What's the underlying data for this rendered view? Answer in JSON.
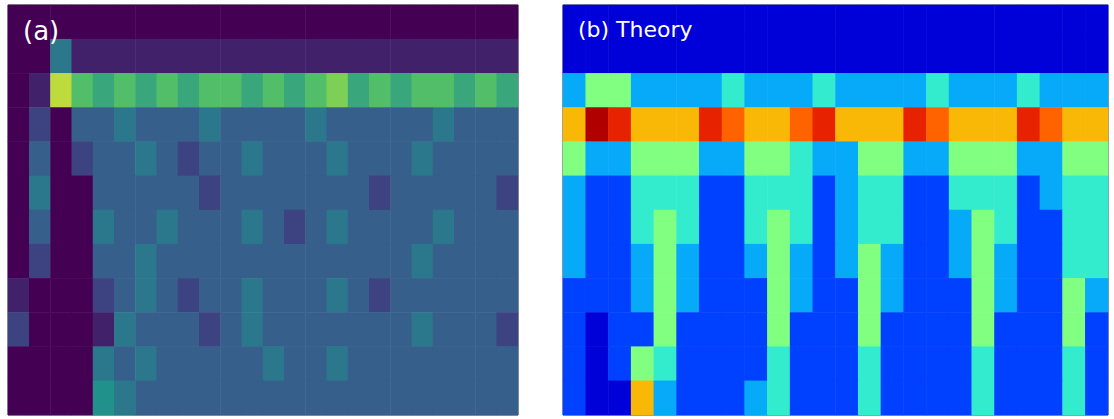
{
  "chart_data": [
    {
      "type": "heatmap",
      "title": "(a)",
      "tick_labels": false,
      "color_range": [
        0,
        10
      ],
      "cells": [
        [
          0,
          0,
          0,
          0,
          0,
          0,
          0,
          0,
          0,
          0,
          0,
          0,
          0,
          0,
          0,
          0,
          0,
          0,
          0,
          0,
          0,
          0,
          0,
          0
        ],
        [
          0,
          0,
          4,
          1,
          1,
          1,
          1,
          1,
          1,
          1,
          1,
          1,
          1,
          1,
          1,
          1,
          1,
          1,
          1,
          1,
          1,
          1,
          1,
          1
        ],
        [
          0,
          1,
          9,
          7,
          6,
          7,
          6,
          7,
          6,
          7,
          7,
          6,
          7,
          6,
          7,
          8,
          6,
          7,
          6,
          7,
          7,
          6,
          7,
          6
        ],
        [
          0,
          2,
          0,
          3,
          3,
          4,
          3,
          3,
          3,
          4,
          3,
          3,
          3,
          3,
          4,
          3,
          3,
          3,
          3,
          3,
          4,
          3,
          3,
          3
        ],
        [
          0,
          3,
          0,
          2,
          3,
          3,
          4,
          3,
          2,
          3,
          3,
          4,
          3,
          3,
          3,
          4,
          3,
          3,
          3,
          4,
          3,
          3,
          3,
          3
        ],
        [
          0,
          4,
          0,
          0,
          3,
          3,
          3,
          3,
          3,
          2,
          3,
          3,
          3,
          3,
          3,
          3,
          3,
          2,
          3,
          3,
          3,
          3,
          3,
          2
        ],
        [
          0,
          3,
          0,
          0,
          4,
          3,
          3,
          4,
          3,
          3,
          3,
          4,
          3,
          2,
          3,
          4,
          3,
          3,
          3,
          3,
          4,
          3,
          3,
          3
        ],
        [
          0,
          2,
          0,
          0,
          3,
          3,
          4,
          3,
          3,
          3,
          3,
          3,
          3,
          3,
          3,
          3,
          3,
          3,
          3,
          4,
          3,
          3,
          3,
          3
        ],
        [
          1,
          0,
          0,
          0,
          2,
          3,
          4,
          3,
          2,
          3,
          3,
          4,
          3,
          3,
          3,
          4,
          3,
          2,
          3,
          3,
          3,
          3,
          3,
          3
        ],
        [
          2,
          0,
          0,
          0,
          1,
          4,
          3,
          3,
          3,
          2,
          3,
          4,
          3,
          3,
          3,
          3,
          3,
          3,
          3,
          4,
          3,
          3,
          3,
          2
        ],
        [
          0,
          0,
          0,
          0,
          4,
          3,
          4,
          3,
          3,
          3,
          3,
          3,
          4,
          3,
          3,
          4,
          3,
          3,
          3,
          3,
          3,
          3,
          3,
          3
        ],
        [
          0,
          0,
          0,
          0,
          5,
          4,
          3,
          3,
          3,
          3,
          3,
          3,
          3,
          3,
          3,
          3,
          3,
          3,
          3,
          3,
          3,
          3,
          3,
          3
        ]
      ]
    },
    {
      "type": "heatmap",
      "title": "(b) Theory",
      "tick_labels": false,
      "color_range": [
        0,
        10
      ],
      "cells": [
        [
          1,
          1,
          1,
          1,
          1,
          1,
          1,
          1,
          1,
          1,
          1,
          1,
          1,
          1,
          1,
          1,
          1,
          1,
          1,
          1,
          1,
          1,
          1,
          1
        ],
        [
          1,
          1,
          1,
          1,
          1,
          1,
          1,
          1,
          1,
          1,
          1,
          1,
          1,
          1,
          1,
          1,
          1,
          1,
          1,
          1,
          1,
          1,
          1,
          1
        ],
        [
          3,
          5,
          5,
          3,
          3,
          3,
          3,
          4,
          3,
          3,
          3,
          4,
          3,
          3,
          3,
          3,
          4,
          3,
          3,
          3,
          4,
          3,
          3,
          3
        ],
        [
          7,
          10,
          9,
          7,
          7,
          7,
          9,
          8,
          7,
          7,
          8,
          9,
          7,
          7,
          7,
          9,
          8,
          7,
          7,
          7,
          9,
          8,
          7,
          7
        ],
        [
          5,
          3,
          3,
          5,
          5,
          5,
          3,
          3,
          5,
          5,
          4,
          3,
          3,
          5,
          5,
          3,
          3,
          5,
          5,
          5,
          3,
          3,
          5,
          5
        ],
        [
          3,
          2,
          2,
          4,
          4,
          4,
          2,
          2,
          4,
          4,
          4,
          2,
          3,
          4,
          4,
          2,
          2,
          4,
          4,
          4,
          2,
          3,
          4,
          4
        ],
        [
          3,
          2,
          2,
          4,
          5,
          4,
          2,
          2,
          4,
          5,
          4,
          2,
          3,
          4,
          4,
          2,
          2,
          3,
          5,
          4,
          2,
          2,
          4,
          4
        ],
        [
          3,
          2,
          2,
          3,
          5,
          3,
          2,
          2,
          3,
          5,
          3,
          2,
          3,
          5,
          3,
          2,
          2,
          3,
          5,
          3,
          2,
          2,
          4,
          4
        ],
        [
          2,
          2,
          2,
          3,
          5,
          3,
          2,
          2,
          2,
          5,
          3,
          2,
          2,
          5,
          3,
          2,
          2,
          2,
          5,
          3,
          2,
          2,
          5,
          3
        ],
        [
          2,
          1,
          2,
          2,
          5,
          2,
          2,
          2,
          2,
          5,
          2,
          2,
          2,
          5,
          2,
          2,
          2,
          2,
          5,
          2,
          2,
          2,
          5,
          2
        ],
        [
          2,
          1,
          2,
          5,
          4,
          2,
          2,
          2,
          2,
          4,
          2,
          2,
          2,
          4,
          2,
          2,
          2,
          2,
          4,
          2,
          2,
          2,
          4,
          2
        ],
        [
          2,
          1,
          1,
          7,
          3,
          2,
          2,
          2,
          3,
          4,
          2,
          2,
          2,
          4,
          2,
          2,
          2,
          2,
          4,
          2,
          2,
          2,
          4,
          2
        ]
      ]
    }
  ]
}
